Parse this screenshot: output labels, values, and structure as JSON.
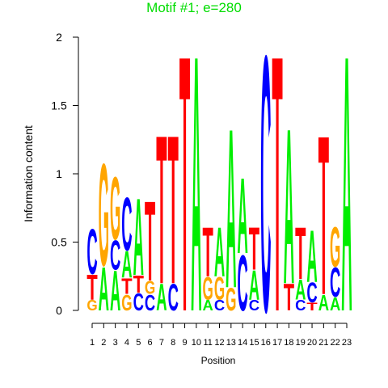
{
  "chart_data": {
    "type": "logo",
    "title": "Motif #1; e=280",
    "x_label": "Position",
    "y_label": "Information content",
    "title_color": "#00dd00",
    "colors": {
      "A": "#00ee00",
      "C": "#0000ff",
      "G": "#ffa500",
      "T": "#ff0000"
    },
    "categories": [
      "1",
      "2",
      "3",
      "4",
      "5",
      "6",
      "7",
      "8",
      "9",
      "10",
      "11",
      "12",
      "13",
      "14",
      "15",
      "16",
      "17",
      "18",
      "19",
      "20",
      "21",
      "22",
      "23"
    ],
    "stacks": [
      [
        {
          "letter": "G",
          "value": 0.08
        },
        {
          "letter": "T",
          "value": 0.19
        },
        {
          "letter": "C",
          "value": 0.34
        }
      ],
      [
        {
          "letter": "A",
          "value": 0.33
        },
        {
          "letter": "G",
          "value": 0.77
        }
      ],
      [
        {
          "letter": "A",
          "value": 0.3
        },
        {
          "letter": "C",
          "value": 0.22
        },
        {
          "letter": "G",
          "value": 0.47
        }
      ],
      [
        {
          "letter": "G",
          "value": 0.12
        },
        {
          "letter": "T",
          "value": 0.12
        },
        {
          "letter": "A",
          "value": 0.2
        },
        {
          "letter": "C",
          "value": 0.4
        }
      ],
      [
        {
          "letter": "C",
          "value": 0.13
        },
        {
          "letter": "T",
          "value": 0.13
        },
        {
          "letter": "A",
          "value": 0.58
        }
      ],
      [
        {
          "letter": "C",
          "value": 0.12
        },
        {
          "letter": "G",
          "value": 0.1
        },
        {
          "letter": "T",
          "value": 0.6
        }
      ],
      [
        {
          "letter": "A",
          "value": 0.2
        },
        {
          "letter": "T",
          "value": 1.12
        }
      ],
      [
        {
          "letter": "C",
          "value": 0.2
        },
        {
          "letter": "T",
          "value": 1.12
        }
      ],
      [
        {
          "letter": "T",
          "value": 1.93
        }
      ],
      [
        {
          "letter": "A",
          "value": 1.93
        }
      ],
      [
        {
          "letter": "A",
          "value": 0.08
        },
        {
          "letter": "G",
          "value": 0.17
        },
        {
          "letter": "T",
          "value": 0.37
        }
      ],
      [
        {
          "letter": "C",
          "value": 0.08
        },
        {
          "letter": "G",
          "value": 0.17
        },
        {
          "letter": "A",
          "value": 0.37
        }
      ],
      [
        {
          "letter": "G",
          "value": 0.17
        },
        {
          "letter": "A",
          "value": 1.2
        }
      ],
      [
        {
          "letter": "C",
          "value": 0.42
        },
        {
          "letter": "A",
          "value": 0.57
        }
      ],
      [
        {
          "letter": "C",
          "value": 0.08
        },
        {
          "letter": "A",
          "value": 0.22
        },
        {
          "letter": "T",
          "value": 0.32
        }
      ],
      [
        {
          "letter": "C",
          "value": 1.93
        }
      ],
      [
        {
          "letter": "T",
          "value": 1.93
        }
      ],
      [
        {
          "letter": "T",
          "value": 0.2
        },
        {
          "letter": "A",
          "value": 1.17
        }
      ],
      [
        {
          "letter": "C",
          "value": 0.08
        },
        {
          "letter": "A",
          "value": 0.15
        },
        {
          "letter": "T",
          "value": 0.39
        }
      ],
      [
        {
          "letter": "T",
          "value": 0.06
        },
        {
          "letter": "C",
          "value": 0.15
        },
        {
          "letter": "A",
          "value": 0.39
        }
      ],
      [
        {
          "letter": "A",
          "value": 0.12
        },
        {
          "letter": "T",
          "value": 1.2
        }
      ],
      [
        {
          "letter": "A",
          "value": 0.1
        },
        {
          "letter": "C",
          "value": 0.22
        },
        {
          "letter": "G",
          "value": 0.3
        }
      ],
      [
        {
          "letter": "A",
          "value": 1.93
        }
      ]
    ],
    "ylim": [
      0,
      2
    ],
    "yticks": [
      0,
      0.5,
      1,
      1.5,
      2
    ]
  }
}
